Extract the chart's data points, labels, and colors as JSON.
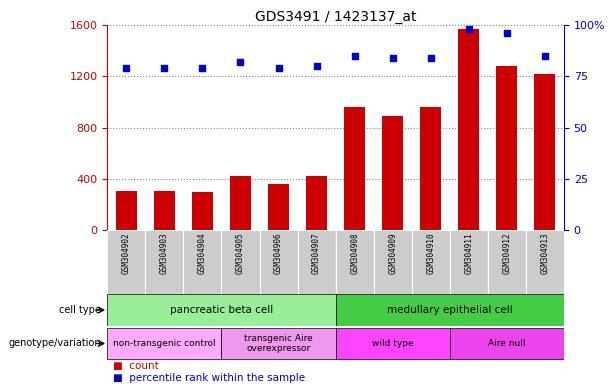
{
  "title": "GDS3491 / 1423137_at",
  "samples": [
    "GSM304902",
    "GSM304903",
    "GSM304904",
    "GSM304905",
    "GSM304906",
    "GSM304907",
    "GSM304908",
    "GSM304909",
    "GSM304910",
    "GSM304911",
    "GSM304912",
    "GSM304913"
  ],
  "counts": [
    310,
    310,
    300,
    420,
    360,
    420,
    960,
    890,
    960,
    1570,
    1280,
    1220
  ],
  "percentile_ranks": [
    79,
    79,
    79,
    82,
    79,
    80,
    85,
    84,
    84,
    98,
    96,
    85
  ],
  "left_ylim": [
    0,
    1600
  ],
  "right_ylim": [
    0,
    100
  ],
  "left_yticks": [
    0,
    400,
    800,
    1200,
    1600
  ],
  "right_yticks": [
    0,
    25,
    50,
    75,
    100
  ],
  "right_yticklabels": [
    "0",
    "25",
    "50",
    "75",
    "100%"
  ],
  "bar_color": "#cc0000",
  "dot_color": "#0000cc",
  "cell_type_groups": [
    {
      "label": "pancreatic beta cell",
      "start": 0,
      "end": 6,
      "color": "#99ee99"
    },
    {
      "label": "medullary epithelial cell",
      "start": 6,
      "end": 12,
      "color": "#44cc44"
    }
  ],
  "genotype_groups": [
    {
      "label": "non-transgenic control",
      "start": 0,
      "end": 3,
      "color": "#ffaaff"
    },
    {
      "label": "transgenic Aire\noverexpressor",
      "start": 3,
      "end": 6,
      "color": "#ee99ee"
    },
    {
      "label": "wild type",
      "start": 6,
      "end": 9,
      "color": "#ff44ff"
    },
    {
      "label": "Aire null",
      "start": 9,
      "end": 12,
      "color": "#ee44ee"
    }
  ],
  "background_color": "#ffffff",
  "grid_color": "#888888",
  "tick_label_color_left": "#cc0000",
  "tick_label_color_right": "#0000cc",
  "bar_width": 0.55,
  "tick_bg_color": "#cccccc"
}
